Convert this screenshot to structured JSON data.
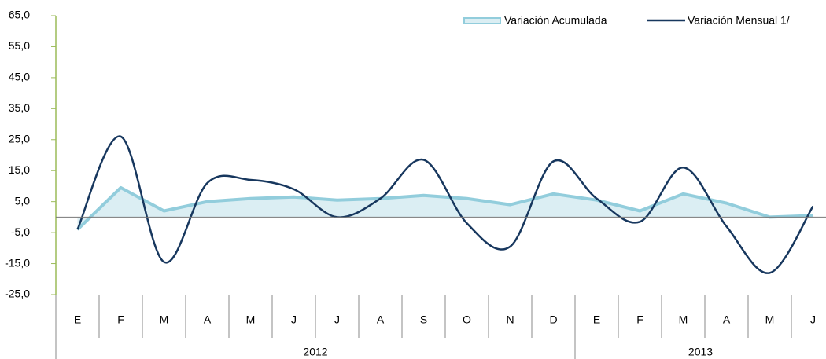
{
  "chart_data": {
    "type": "line",
    "categories": [
      "E",
      "F",
      "M",
      "A",
      "M",
      "J",
      "J",
      "A",
      "S",
      "O",
      "N",
      "D",
      "E",
      "F",
      "M",
      "A",
      "M",
      "J"
    ],
    "years": [
      {
        "name": "2012",
        "count": 12
      },
      {
        "name": "2013",
        "count": 6
      }
    ],
    "series": [
      {
        "name": "Variación Acumulada",
        "color": "#92cddc",
        "fill": "#dbeef3",
        "style": "area",
        "values": [
          -4,
          9.5,
          2,
          5,
          6,
          6.5,
          5.5,
          6,
          7,
          6,
          4,
          7.5,
          5.5,
          2,
          7.5,
          4.5,
          0,
          0.5
        ]
      },
      {
        "name": "Variación Mensual 1/",
        "color": "#17375e",
        "style": "smooth",
        "values": [
          -4,
          26,
          -14.5,
          11,
          12,
          9,
          0,
          6,
          18.5,
          -2,
          -9.5,
          18,
          6,
          -1.5,
          16,
          -3,
          -18,
          3.5
        ]
      }
    ],
    "ylim": [
      -25,
      65
    ],
    "yticks": [
      {
        "value": -25,
        "label": "-25,0"
      },
      {
        "value": -15,
        "label": "-15,0"
      },
      {
        "value": -5,
        "label": "-5,0"
      },
      {
        "value": 5,
        "label": "5,0"
      },
      {
        "value": 15,
        "label": "15,0"
      },
      {
        "value": 25,
        "label": "25,0"
      },
      {
        "value": 35,
        "label": "35,0"
      },
      {
        "value": 45,
        "label": "45,0"
      },
      {
        "value": 55,
        "label": "55,0"
      },
      {
        "value": 65,
        "label": "65,0"
      }
    ],
    "legend": "top-right"
  }
}
